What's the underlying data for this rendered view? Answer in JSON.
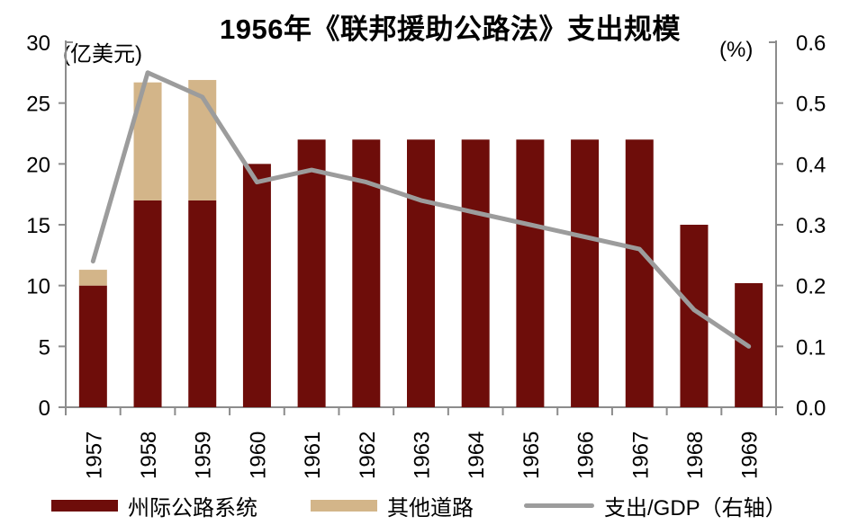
{
  "chart_data": {
    "type": "bar",
    "variant": "stacked-bars-with-line-overlay",
    "title": "1956年《联邦援助公路法》支出规模",
    "categories": [
      "1957",
      "1958",
      "1959",
      "1960",
      "1961",
      "1962",
      "1963",
      "1964",
      "1965",
      "1966",
      "1967",
      "1968",
      "1969"
    ],
    "left_axis": {
      "unit_label": "(亿美元)",
      "min": 0,
      "max": 30,
      "ticks": [
        0,
        5,
        10,
        15,
        20,
        25,
        30
      ]
    },
    "right_axis": {
      "unit_label": "(%)",
      "min": 0,
      "max": 0.6,
      "ticks": [
        "0.0",
        "0.1",
        "0.2",
        "0.3",
        "0.4",
        "0.5",
        "0.6"
      ]
    },
    "series": [
      {
        "name": "州际公路系统",
        "type": "bar",
        "axis": "left",
        "color": "#6E0D0A",
        "values": [
          10,
          17,
          17,
          20,
          22,
          22,
          22,
          22,
          22,
          22,
          22,
          15,
          10.2
        ]
      },
      {
        "name": "其他道路",
        "type": "bar",
        "axis": "left",
        "color": "#D3B589",
        "values": [
          1.3,
          9.7,
          9.9,
          0,
          0,
          0,
          0,
          0,
          0,
          0,
          0,
          0,
          0
        ]
      },
      {
        "name": "支出/GDP（右轴）",
        "type": "line",
        "axis": "right",
        "color": "#9C9C9C",
        "values": [
          0.24,
          0.55,
          0.51,
          0.37,
          0.39,
          0.37,
          0.34,
          0.32,
          0.3,
          0.28,
          0.26,
          0.16,
          0.1
        ]
      }
    ],
    "legend_position": "bottom",
    "grid": false,
    "axis_color": "#8C8C8C",
    "text_color": "#000000"
  }
}
